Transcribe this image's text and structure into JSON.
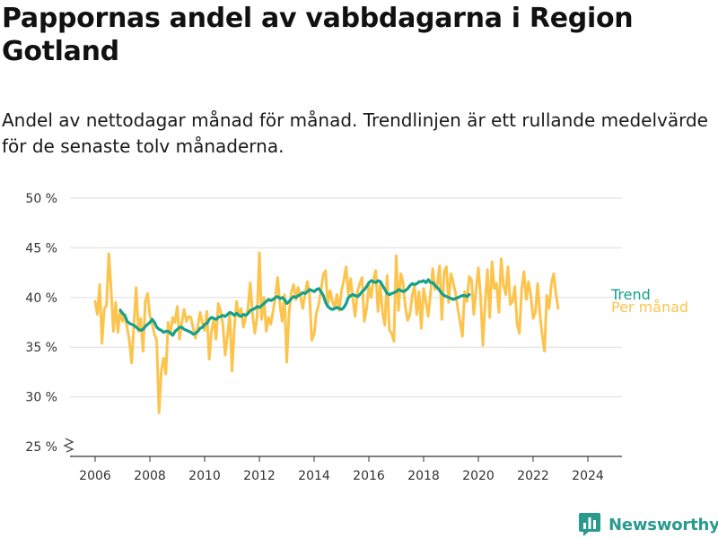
{
  "title": "Pappornas andel av vabbdagarna i Region Gotland",
  "subtitle": "Andel av nettodagar månad för månad. Trendlinjen är ett rullande medelvärde för de senaste tolv månaderna.",
  "brand": "Newsworthy",
  "colors": {
    "monthly": "#fcc44d",
    "trend": "#14a08a",
    "grid": "#dddddd",
    "axis": "#333333",
    "brand": "#2a9a8e"
  },
  "chart_data": {
    "type": "line",
    "title": "Pappornas andel av vabbdagarna i Region Gotland",
    "xlabel": "",
    "ylabel": "",
    "x_range": [
      2006,
      2024.4
    ],
    "y_range": [
      25,
      50
    ],
    "y_ticks": [
      25,
      30,
      35,
      40,
      45,
      50
    ],
    "y_tick_labels": [
      "25 %",
      "30 %",
      "35 %",
      "40 %",
      "45 %",
      "50 %"
    ],
    "x_ticks": [
      2006,
      2008,
      2010,
      2012,
      2014,
      2016,
      2018,
      2020,
      2022,
      2024
    ],
    "x_tick_labels": [
      "2006",
      "2008",
      "2010",
      "2012",
      "2014",
      "2016",
      "2018",
      "2020",
      "2022",
      "2024"
    ],
    "axis_break": true,
    "grid": true,
    "series": [
      {
        "name": "Per månad",
        "start_year": 2006.0,
        "step": 0.08333,
        "values": [
          39.6,
          38.3,
          41.3,
          35.4,
          38.9,
          39.2,
          44.4,
          40.8,
          36.6,
          39.5,
          36.5,
          38.8,
          37.6,
          38.2,
          37.0,
          35.7,
          33.4,
          37.3,
          41.0,
          36.6,
          37.9,
          34.6,
          39.6,
          40.4,
          38.2,
          37.4,
          36.3,
          35.7,
          28.4,
          32.6,
          33.9,
          32.3,
          37.5,
          36.3,
          38.0,
          37.5,
          39.1,
          35.8,
          37.5,
          38.8,
          37.6,
          38.1,
          38.0,
          36.9,
          35.9,
          37.1,
          38.5,
          37.4,
          36.7,
          38.6,
          33.8,
          36.6,
          37.8,
          35.8,
          39.4,
          38.6,
          37.3,
          34.2,
          36.1,
          38.4,
          32.6,
          36.8,
          39.6,
          38.1,
          38.9,
          37.0,
          38.0,
          38.9,
          41.5,
          38.3,
          36.4,
          38.1,
          44.5,
          37.8,
          40.0,
          36.6,
          38.0,
          37.3,
          38.6,
          40.0,
          42.0,
          39.3,
          37.6,
          40.3,
          33.5,
          38.4,
          40.5,
          41.3,
          39.8,
          41.0,
          40.2,
          38.9,
          40.3,
          41.6,
          40.3,
          35.7,
          36.3,
          38.4,
          39.3,
          40.7,
          42.3,
          42.7,
          39.3,
          40.7,
          39.6,
          39.0,
          40.3,
          38.7,
          40.7,
          41.7,
          43.1,
          40.3,
          41.9,
          39.8,
          38.1,
          40.6,
          41.4,
          42.0,
          37.6,
          38.8,
          41.2,
          40.0,
          41.8,
          42.7,
          38.6,
          41.3,
          38.5,
          37.2,
          42.2,
          36.7,
          36.4,
          35.6,
          44.2,
          38.7,
          42.4,
          41.5,
          39.0,
          37.7,
          38.3,
          40.2,
          41.2,
          38.3,
          40.6,
          36.9,
          40.9,
          39.6,
          38.1,
          40.3,
          42.9,
          40.8,
          41.3,
          43.2,
          37.8,
          42.6,
          43.1,
          39.5,
          42.4,
          41.5,
          40.4,
          38.9,
          37.5,
          36.1,
          40.6,
          39.6,
          42.1,
          41.8,
          38.3,
          40.7,
          43.0,
          40.1,
          35.2,
          39.6,
          42.8,
          38.0,
          43.6,
          40.9,
          41.4,
          38.5,
          43.9,
          41.3,
          40.3,
          43.1,
          39.3,
          39.6,
          41.1,
          37.3,
          36.4,
          40.9,
          42.6,
          39.8,
          41.6,
          40.2,
          37.9,
          38.5,
          41.4,
          38.3,
          36.2,
          34.6,
          40.2,
          38.9,
          41.3,
          42.4,
          40.4,
          38.9
        ]
      },
      {
        "name": "Trend",
        "start_year": 2006.92,
        "step": 0.08333,
        "values": [
          38.7,
          38.4,
          38.2,
          37.6,
          37.4,
          37.3,
          37.2,
          37.0,
          36.8,
          36.7,
          36.8,
          37.1,
          37.3,
          37.5,
          37.8,
          37.5,
          37.0,
          36.8,
          36.7,
          36.5,
          36.6,
          36.6,
          36.4,
          36.2,
          36.6,
          36.8,
          37.0,
          37.0,
          36.8,
          36.7,
          36.6,
          36.5,
          36.3,
          36.4,
          36.6,
          36.9,
          37.0,
          37.3,
          37.4,
          37.8,
          38.0,
          37.9,
          37.8,
          38.0,
          38.1,
          38.2,
          38.1,
          38.3,
          38.5,
          38.4,
          38.2,
          38.4,
          38.2,
          38.1,
          38.3,
          38.2,
          38.4,
          38.7,
          38.8,
          38.9,
          39.1,
          39.0,
          39.2,
          39.4,
          39.6,
          39.8,
          39.7,
          39.8,
          40.0,
          40.1,
          39.9,
          40.0,
          39.8,
          39.4,
          39.6,
          39.9,
          40.1,
          40.0,
          40.2,
          40.3,
          40.5,
          40.4,
          40.6,
          40.8,
          40.7,
          40.6,
          40.8,
          40.9,
          40.6,
          40.2,
          39.5,
          39.1,
          38.9,
          38.8,
          38.9,
          39.0,
          38.9,
          38.8,
          39.0,
          39.4,
          40.0,
          40.2,
          40.3,
          40.2,
          40.1,
          40.3,
          40.6,
          40.8,
          41.1,
          41.5,
          41.7,
          41.6,
          41.5,
          41.7,
          41.6,
          41.2,
          40.8,
          40.4,
          40.3,
          40.4,
          40.5,
          40.6,
          40.8,
          40.7,
          40.6,
          40.7,
          40.9,
          41.2,
          41.4,
          41.3,
          41.4,
          41.6,
          41.6,
          41.7,
          41.5,
          41.8,
          41.5,
          41.5,
          41.2,
          41.0,
          40.7,
          40.4,
          40.2,
          40.1,
          40.0,
          39.9,
          39.8,
          39.9,
          40.0,
          40.1,
          40.2,
          40.2,
          40.1,
          40.3
        ]
      }
    ]
  }
}
